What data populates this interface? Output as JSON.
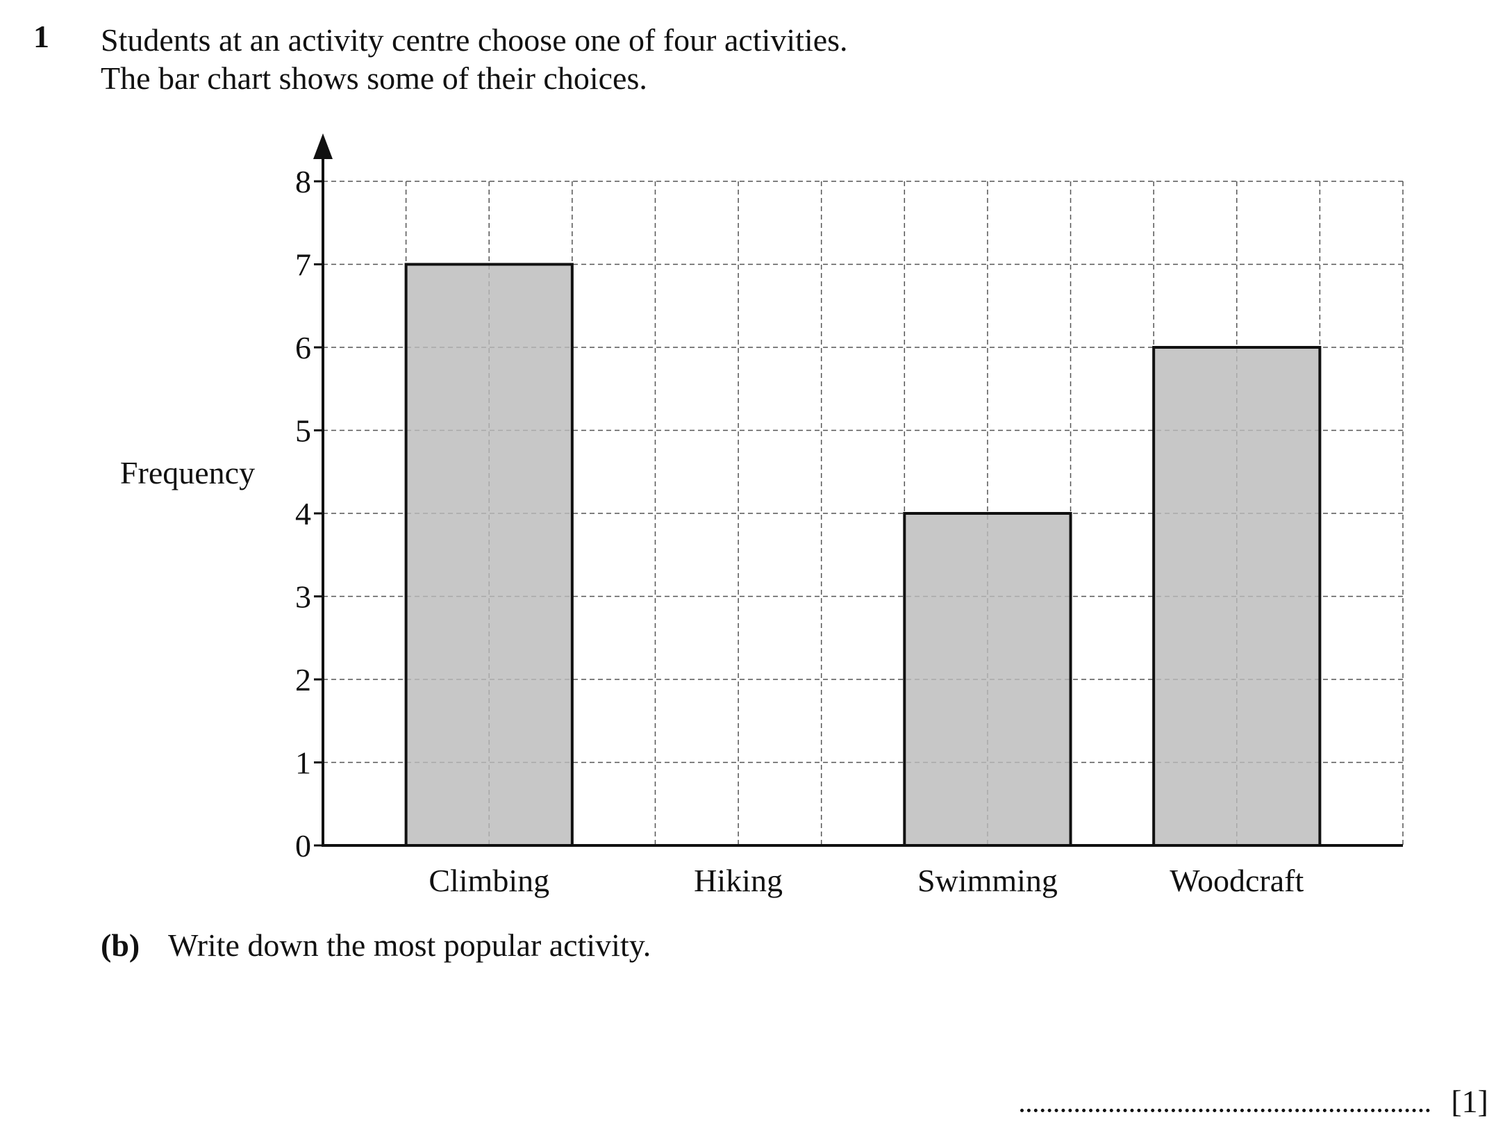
{
  "question": {
    "number": "1",
    "lines": [
      "Students at an activity centre choose one of four activities.",
      "The bar chart shows some of their choices."
    ]
  },
  "chart_data": {
    "type": "bar",
    "categories": [
      "Climbing",
      "Hiking",
      "Swimming",
      "Woodcraft"
    ],
    "values": [
      7,
      null,
      4,
      6
    ],
    "ylabel": "Frequency",
    "xlabel": "",
    "ylim": [
      0,
      8
    ],
    "yticks": [
      0,
      1,
      2,
      3,
      4,
      5,
      6,
      7,
      8
    ],
    "grid": true,
    "grid_style": "dashed",
    "bar_color": "#bbbbbb",
    "note": ""
  },
  "part_b": {
    "label": "(b)",
    "text": "Write down the most popular activity.",
    "marks": "[1]"
  }
}
